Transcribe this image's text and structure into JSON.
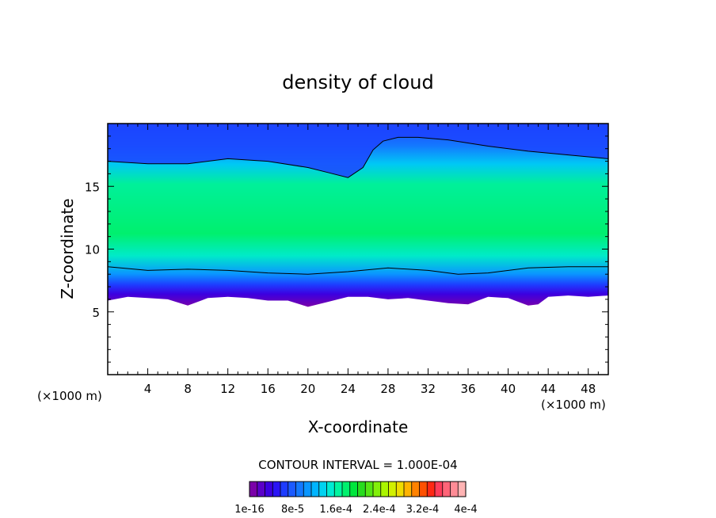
{
  "chart_data": {
    "type": "heatmap",
    "title": "density of cloud",
    "xlabel": "X-coordinate",
    "ylabel": "Z-coordinate",
    "x_unit": "(×1000 m)",
    "x_unit_right": "(×1000 m)",
    "xlim": [
      0,
      50
    ],
    "ylim": [
      0,
      20
    ],
    "x_ticks": [
      4,
      8,
      12,
      16,
      20,
      24,
      28,
      32,
      36,
      40,
      44,
      48
    ],
    "y_ticks": [
      5,
      10,
      15
    ],
    "contour_interval_text": "CONTOUR INTERVAL = 1.000E-04",
    "colorbar_labels": [
      "1e-16",
      "8e-5",
      "1.6e-4",
      "2.4e-4",
      "3.2e-4",
      "4e-4"
    ],
    "colorbar_colors": [
      "#7a00a8",
      "#5a00c8",
      "#3c00e0",
      "#2a14f5",
      "#1e3cff",
      "#1c5aff",
      "#1478ff",
      "#0a96ff",
      "#00b4ff",
      "#00d2f0",
      "#00ebd2",
      "#00f5a0",
      "#00f06e",
      "#00e63c",
      "#28dc1e",
      "#55e614",
      "#82f00a",
      "#aaf500",
      "#d2f000",
      "#f0dc00",
      "#ffb400",
      "#ff8200",
      "#ff5000",
      "#ff2814",
      "#ff3c5a",
      "#ff6478",
      "#ff8c96",
      "#ffb4b4"
    ],
    "grid": false,
    "legend": "bottom colorbar",
    "top_contour": {
      "x": [
        0,
        4,
        8,
        12,
        16,
        20,
        22,
        24,
        25.5,
        26.5,
        27.5,
        29,
        31,
        34,
        38,
        42,
        46,
        50
      ],
      "z": [
        17.0,
        16.8,
        16.8,
        17.2,
        17.0,
        16.5,
        16.1,
        15.7,
        16.5,
        17.9,
        18.6,
        18.9,
        18.9,
        18.7,
        18.2,
        17.8,
        17.5,
        17.2
      ]
    },
    "bottom_contour": {
      "x": [
        0,
        4,
        8,
        12,
        16,
        20,
        24,
        28,
        32,
        35,
        38,
        42,
        46,
        50
      ],
      "z": [
        8.6,
        8.3,
        8.4,
        8.3,
        8.1,
        8.0,
        8.2,
        8.5,
        8.3,
        8.0,
        8.1,
        8.5,
        8.6,
        8.6
      ]
    },
    "cloud_base": {
      "x": [
        0,
        2,
        4,
        6,
        8,
        10,
        12,
        14,
        16,
        18,
        20,
        22,
        24,
        26,
        28,
        30,
        32,
        34,
        36,
        38,
        40,
        42,
        43,
        44,
        46,
        48,
        50
      ],
      "z": [
        5.9,
        6.2,
        6.1,
        6.0,
        5.5,
        6.1,
        6.2,
        6.1,
        5.9,
        5.9,
        5.4,
        5.8,
        6.2,
        6.2,
        6.0,
        6.1,
        5.9,
        5.7,
        5.6,
        6.2,
        6.1,
        5.5,
        5.6,
        6.2,
        6.3,
        6.2,
        6.3
      ]
    }
  }
}
